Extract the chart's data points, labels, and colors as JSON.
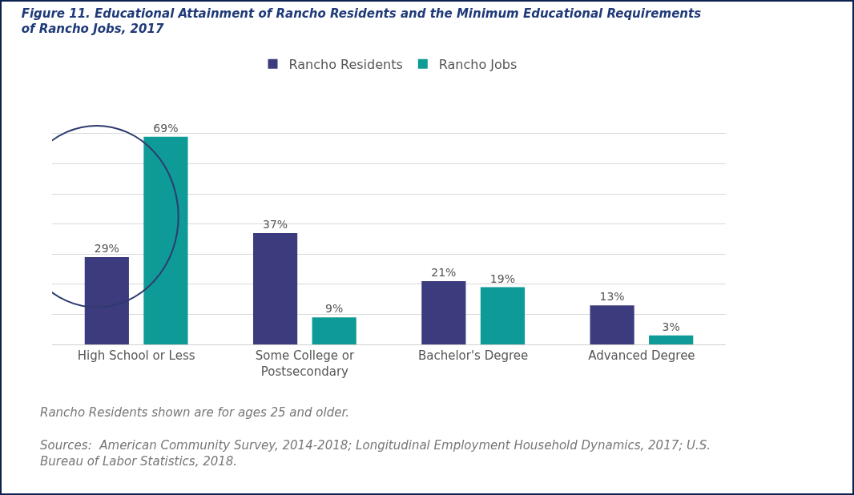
{
  "chart_data": {
    "type": "bar",
    "title": "Figure 11. Educational Attainment of Rancho Residents and the Minimum Educational Requirements of Rancho Jobs, 2017",
    "categories": [
      "High School or Less",
      "Some College or Postsecondary",
      "Bachelor's Degree",
      "Advanced Degree"
    ],
    "series": [
      {
        "name": "Rancho Residents",
        "color": "#3b3b7d",
        "values": [
          29,
          37,
          21,
          13
        ],
        "value_labels": [
          "29%",
          "37%",
          "21%",
          "13%"
        ]
      },
      {
        "name": "Rancho Jobs",
        "color": "#0e9a96",
        "values": [
          69,
          9,
          19,
          3
        ],
        "value_labels": [
          "69%",
          "9%",
          "19%",
          "3%"
        ]
      }
    ],
    "grid": "y",
    "legend": "top",
    "tick_labels": "x",
    "annotations": [
      "Rancho Residents shown are for ages 25 and older.",
      "Sources:  American Community Survey, 2014-2018; Longitudinal Employment Household Dynamics, 2017; U.S. Bureau of Labor Statistics, 2018."
    ]
  }
}
